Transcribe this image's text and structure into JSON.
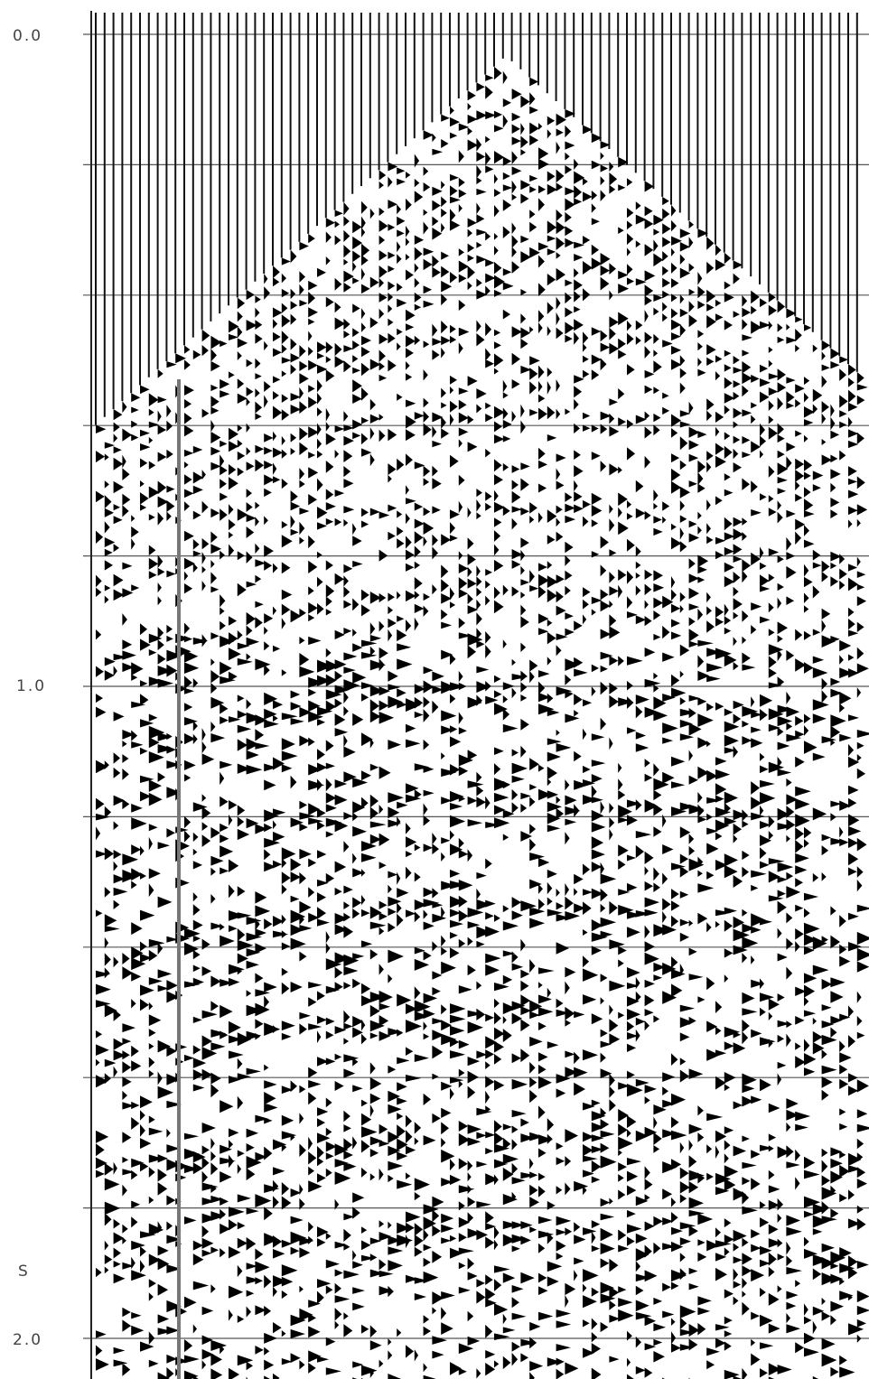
{
  "axis": {
    "labels": [
      "0.0",
      "1.0",
      "S",
      "2.0"
    ]
  }
}
